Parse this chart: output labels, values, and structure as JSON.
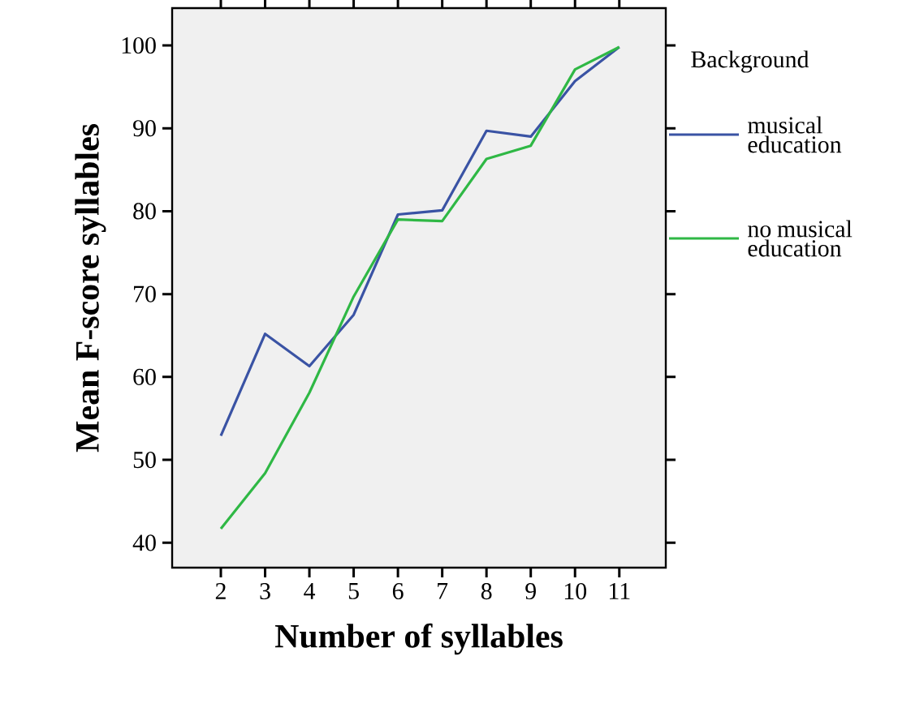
{
  "chart_data": {
    "type": "line",
    "xlabel": "Number of syllables",
    "ylabel": "Mean F-score syllables",
    "legend_title": "Background",
    "legend": "right",
    "grid": false,
    "categories": [
      "2",
      "3",
      "4",
      "5",
      "6",
      "7",
      "8",
      "9",
      "10",
      "11"
    ],
    "ylim": [
      37,
      104.5
    ],
    "yticks": [
      40,
      50,
      60,
      70,
      80,
      90,
      100
    ],
    "series": [
      {
        "name": "musical education",
        "color": "#3a53a4",
        "values": [
          52.9,
          65.2,
          61.3,
          67.5,
          79.6,
          80.1,
          89.7,
          89.0,
          95.7,
          99.8
        ]
      },
      {
        "name": "no musical education",
        "color": "#2fb845",
        "values": [
          41.7,
          48.4,
          58.1,
          69.7,
          79.0,
          78.8,
          86.3,
          87.9,
          97.1,
          99.8
        ]
      }
    ]
  }
}
